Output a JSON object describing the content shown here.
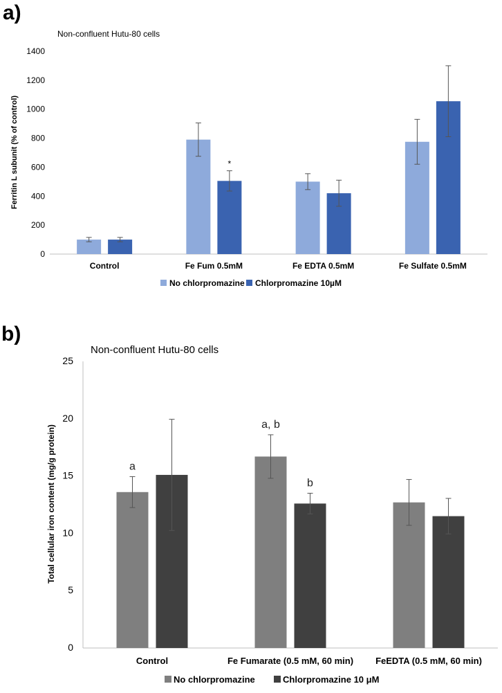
{
  "panel_labels": [
    "a)",
    "b)"
  ],
  "chart_data": [
    {
      "type": "bar",
      "title": "Non-confluent Hutu-80 cells",
      "xlabel": "",
      "ylabel": "Ferritin L subunit (% of control)",
      "ylim": [
        0,
        1400
      ],
      "yticks": [
        "0",
        "200",
        "400",
        "600",
        "800",
        "1000",
        "1200",
        "1400"
      ],
      "categories": [
        "Control",
        "Fe Fum 0.5mM",
        "Fe EDTA 0.5mM",
        "Fe Sulfate 0.5mM"
      ],
      "series": [
        {
          "name": "No chlorpromazine",
          "color": "#8eaadb",
          "values": [
            100,
            790,
            500,
            775
          ],
          "errors": [
            15,
            115,
            55,
            155
          ]
        },
        {
          "name": "Chlorpromazine 10µM",
          "color": "#3a63b0",
          "values": [
            100,
            505,
            420,
            1055
          ],
          "errors": [
            15,
            70,
            90,
            245
          ]
        }
      ],
      "annotations": [
        {
          "text": "*",
          "category_index": 1,
          "series_index": 1
        }
      ],
      "legend": "bottom"
    },
    {
      "type": "bar",
      "title": "Non-confluent Hutu-80 cells",
      "xlabel": "",
      "ylabel": "Total cellular iron content (mg/g protein)",
      "ylim": [
        0,
        25
      ],
      "yticks": [
        "0",
        "5",
        "10",
        "15",
        "20",
        "25"
      ],
      "categories": [
        "Control",
        "Fe Fumarate (0.5 mM, 60 min)",
        "FeEDTA (0.5 mM, 60 min)"
      ],
      "series": [
        {
          "name": "No chlorpromazine",
          "color": "#7f7f7f",
          "values": [
            13.6,
            16.7,
            12.7
          ],
          "errors": [
            1.35,
            1.9,
            2.0
          ]
        },
        {
          "name": "Chlorpromazine 10 μM",
          "color": "#404040",
          "values": [
            15.1,
            12.6,
            11.5
          ],
          "errors": [
            4.85,
            0.9,
            1.55
          ]
        }
      ],
      "annotations": [
        {
          "text": "a",
          "category_index": 0,
          "series_index": 0
        },
        {
          "text": "a, b",
          "category_index": 1,
          "series_index": 0
        },
        {
          "text": "b",
          "category_index": 1,
          "series_index": 1
        }
      ],
      "legend": "bottom"
    }
  ]
}
